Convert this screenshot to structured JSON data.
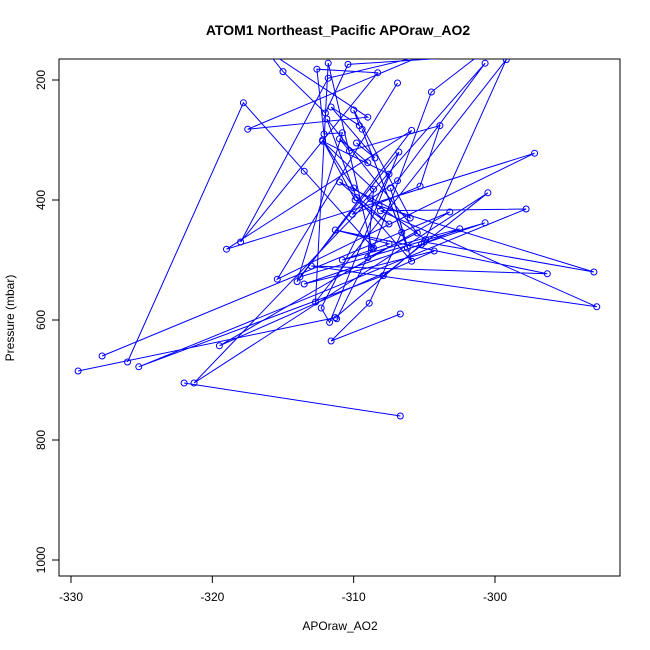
{
  "chart_data": {
    "type": "line",
    "title": "ATOM1 Northeast_Pacific APOraw_AO2",
    "xlabel": "APOraw_AO2",
    "ylabel": "Pressure (mbar)",
    "xlim": [
      -330,
      -300
    ],
    "ylim": [
      1000,
      200
    ],
    "y_axis_reversed": true,
    "grid": false,
    "xticks": [
      -330,
      -320,
      -310,
      -300
    ],
    "yticks": [
      200,
      400,
      600,
      800,
      1000
    ],
    "xtick_labels": [
      "-330",
      "-320",
      "-310",
      "-300"
    ],
    "ytick_labels": [
      "200",
      "400",
      "600",
      "800",
      "1000"
    ],
    "series_color": "#0000ff",
    "marker": "open-circle",
    "series": [
      {
        "points": [
          [
            -322.0,
            705
          ],
          [
            -306.7,
            760
          ]
        ]
      },
      {
        "points": [
          [
            -329.5,
            685
          ],
          [
            -311.3,
            596
          ],
          [
            -305.2,
            474
          ],
          [
            -302.5,
            448
          ],
          [
            -310.8,
            500
          ],
          [
            -307.5,
            473
          ],
          [
            -311.3,
            450
          ],
          [
            -296.3,
            523
          ],
          [
            -313.0,
            510
          ],
          [
            -292.8,
            578
          ],
          [
            -308.1,
            418
          ],
          [
            -297.8,
            415
          ],
          [
            -325.2,
            678
          ],
          [
            -307.9,
            526
          ],
          [
            -300.5,
            388
          ],
          [
            -321.3,
            705
          ],
          [
            -308.8,
            398
          ],
          [
            -306.9,
            368
          ],
          [
            -300.7,
            172
          ],
          [
            -310.1,
            424
          ],
          [
            -305.3,
            377
          ],
          [
            -303.9,
            276
          ],
          [
            -310.3,
            318
          ],
          [
            -311.0,
            298
          ],
          [
            -309.0,
            338
          ]
        ]
      },
      {
        "points": [
          [
            -327.8,
            660
          ],
          [
            -303.2,
            420
          ],
          [
            -319.5,
            643
          ],
          [
            -304.3,
            485
          ],
          [
            -313.5,
            540
          ],
          [
            -300.7,
            438
          ],
          [
            -313.8,
            528
          ],
          [
            -306.8,
            320
          ],
          [
            -311.7,
            604
          ],
          [
            -312.3,
            580
          ],
          [
            -307.5,
            357
          ],
          [
            -312.2,
            302
          ],
          [
            -308.6,
            382
          ],
          [
            -309.0,
            496
          ],
          [
            -305.5,
            455
          ],
          [
            -311.9,
            265
          ],
          [
            -309.8,
            396
          ],
          [
            -305.9,
            502
          ],
          [
            -307.4,
            380
          ],
          [
            -306.2,
            480
          ],
          [
            -309.4,
            282
          ],
          [
            -306.6,
            454
          ],
          [
            -308.9,
            572
          ],
          [
            -311.6,
            635
          ],
          [
            -306.7,
            590
          ]
        ]
      },
      {
        "points": [
          [
            -326.0,
            670
          ],
          [
            -317.8,
            238
          ],
          [
            -313.5,
            352
          ],
          [
            -308.6,
            480
          ],
          [
            -304.5,
            220
          ],
          [
            -301.2,
            160
          ],
          [
            -310.4,
            174
          ],
          [
            -312.0,
            255
          ],
          [
            -315.0,
            186
          ],
          [
            -316.2,
            150
          ],
          [
            -309.0,
            262
          ],
          [
            -317.5,
            282
          ],
          [
            -305.2,
            160
          ],
          [
            -311.8,
            197
          ],
          [
            -318.0,
            470
          ],
          [
            -308.3,
            188
          ],
          [
            -312.6,
            182
          ],
          [
            -312.1,
            290
          ],
          [
            -310.8,
            288
          ],
          [
            -314.0,
            536
          ],
          [
            -305.9,
            284
          ],
          [
            -319.0,
            482
          ],
          [
            -297.2,
            322
          ],
          [
            -315.4,
            532
          ],
          [
            -306.9,
            205
          ]
        ]
      },
      {
        "points": [
          [
            -311.2,
            598
          ],
          [
            -308.7,
            481
          ],
          [
            -311.8,
            172
          ],
          [
            -312.7,
            570
          ],
          [
            -299.2,
            166
          ],
          [
            -305.0,
            470
          ],
          [
            -293.0,
            520
          ],
          [
            -308.2,
            410
          ],
          [
            -304.9,
            466
          ],
          [
            -310.0,
            380
          ],
          [
            -312.2,
            300
          ],
          [
            -309.9,
            400
          ],
          [
            -307.5,
            440
          ],
          [
            -311.0,
            370
          ],
          [
            -306.0,
            430
          ],
          [
            -310.0,
            250
          ],
          [
            -309.6,
            276
          ],
          [
            -311.6,
            245
          ],
          [
            -308.5,
            330
          ],
          [
            -309.8,
            305
          ]
        ]
      }
    ]
  }
}
